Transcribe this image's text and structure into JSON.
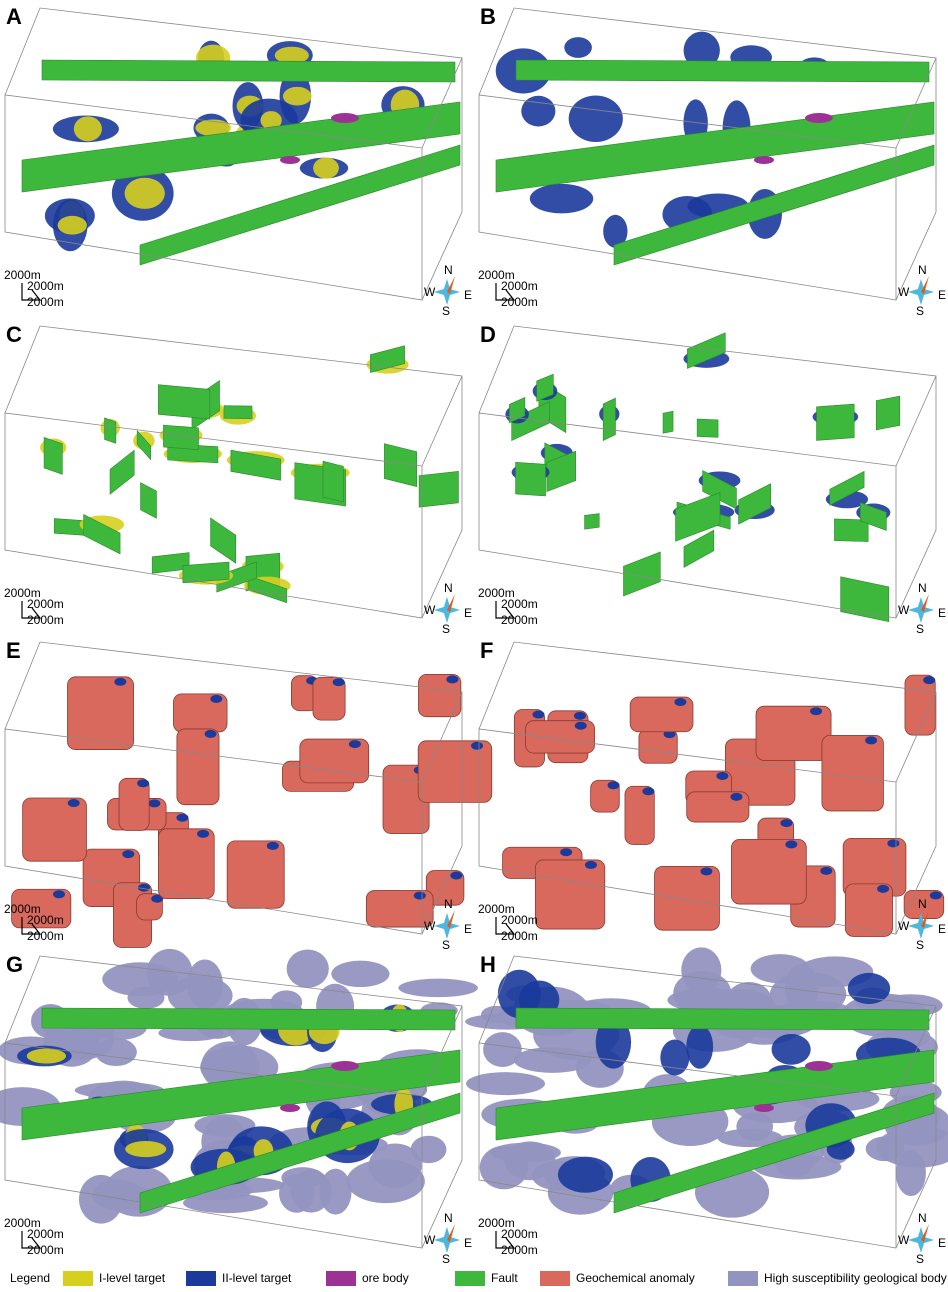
{
  "panels": [
    {
      "label": "A",
      "scale": [
        "2000m",
        "2000m",
        "2000m"
      ],
      "compass": {
        "N": "N",
        "W": "W",
        "E": "E",
        "S": "S"
      }
    },
    {
      "label": "B",
      "scale": [
        "2000m",
        "2000m",
        "2000m"
      ],
      "compass": {
        "N": "N",
        "W": "W",
        "E": "E",
        "S": "S"
      }
    },
    {
      "label": "C",
      "scale": [
        "2000m",
        "2000m",
        "2000m"
      ],
      "compass": {
        "N": "N",
        "W": "W",
        "E": "E",
        "S": "S"
      }
    },
    {
      "label": "D",
      "scale": [
        "2000m",
        "2000m",
        "2000m"
      ],
      "compass": {
        "N": "N",
        "W": "W",
        "E": "E",
        "S": "S"
      }
    },
    {
      "label": "E",
      "scale": [
        "2000m",
        "2000m",
        "2000m"
      ],
      "compass": {
        "N": "N",
        "W": "W",
        "E": "E",
        "S": "S"
      }
    },
    {
      "label": "F",
      "scale": [
        "2000m",
        "2000m",
        "2000m"
      ],
      "compass": {
        "N": "N",
        "W": "W",
        "E": "E",
        "S": "S"
      }
    },
    {
      "label": "G",
      "scale": [
        "2000m",
        "2000m",
        "2000m"
      ],
      "compass": {
        "N": "N",
        "W": "W",
        "E": "E",
        "S": "S"
      }
    },
    {
      "label": "H",
      "scale": [
        "2000m",
        "2000m",
        "2000m"
      ],
      "compass": {
        "N": "N",
        "W": "W",
        "E": "E",
        "S": "S"
      }
    }
  ],
  "legend": {
    "title": "Legend",
    "items": [
      {
        "label": "I-level target",
        "color": "#d6cf1e"
      },
      {
        "label": "II-level target",
        "color": "#1b3a9c"
      },
      {
        "label": "ore body",
        "color": "#9c3394"
      },
      {
        "label": "Fault",
        "color": "#3db83d"
      },
      {
        "label": "Geochemical anomaly",
        "color": "#d8695c"
      },
      {
        "label": "High susceptibility geological body",
        "color": "#9393c0"
      }
    ]
  }
}
